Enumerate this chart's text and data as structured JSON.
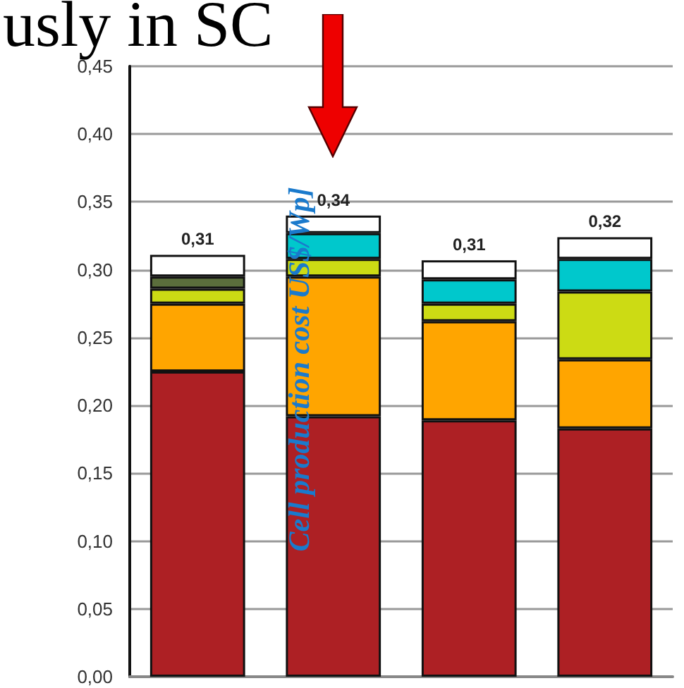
{
  "chart_data": {
    "type": "bar",
    "stacked": true,
    "title": "usly in SC",
    "ylabel": "Cell production cost US$/Wp]",
    "categories": [
      null,
      null,
      null,
      null
    ],
    "series": [
      {
        "color": "#ad2024",
        "values": [
          0.225,
          0.192,
          0.189,
          0.183
        ]
      },
      {
        "color": "#ffa500",
        "values": [
          0.05,
          0.103,
          0.073,
          0.051
        ]
      },
      {
        "color": "#ccdb14",
        "values": [
          0.011,
          0.013,
          0.013,
          0.05
        ]
      },
      {
        "color": "#5b6e3c",
        "values": [
          0.009,
          null,
          null,
          null
        ]
      },
      {
        "color": "#00c8cc",
        "values": [
          null,
          0.019,
          0.018,
          0.024
        ]
      },
      {
        "color": "#ffffff",
        "values": [
          0.016,
          0.013,
          0.014,
          0.016
        ]
      }
    ],
    "totals": [
      "0,31",
      "0,34",
      "0,31",
      "0,32"
    ],
    "ylim": [
      0,
      0.45
    ],
    "yticks": [
      {
        "value": 0,
        "label": "0,00"
      },
      {
        "value": 0.05,
        "label": "0,05"
      },
      {
        "value": 0.1,
        "label": "0,10"
      },
      {
        "value": 0.15,
        "label": "0,15"
      },
      {
        "value": 0.2,
        "label": "0,20"
      },
      {
        "value": 0.25,
        "label": "0,25"
      },
      {
        "value": 0.3,
        "label": "0,30"
      },
      {
        "value": 0.35,
        "label": "0,35"
      },
      {
        "value": 0.4,
        "label": "0,40"
      },
      {
        "value": 0.45,
        "label": "0,45"
      }
    ],
    "grid": "y"
  }
}
